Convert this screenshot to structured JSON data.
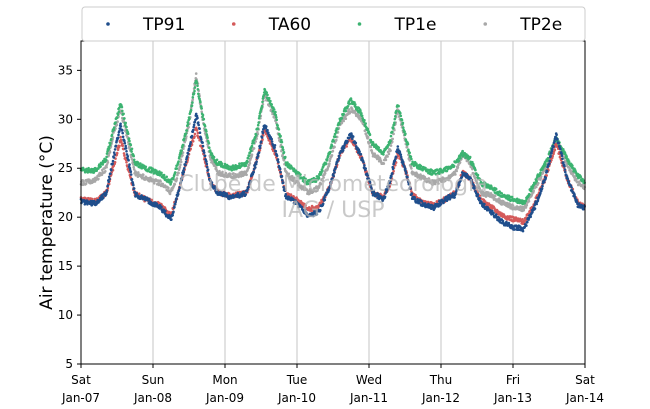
{
  "chart_data": {
    "type": "scatter",
    "ylabel": "Air temperature (°C)",
    "xlabel": "",
    "ylim": [
      5,
      38
    ],
    "yticks": [
      5,
      10,
      15,
      20,
      25,
      30,
      35
    ],
    "x_range_days": [
      0,
      7
    ],
    "xticks": [
      {
        "day": "Sat",
        "date": "Jan-07"
      },
      {
        "day": "Sun",
        "date": "Jan-08"
      },
      {
        "day": "Mon",
        "date": "Jan-09"
      },
      {
        "day": "Tue",
        "date": "Jan-10"
      },
      {
        "day": "Wed",
        "date": "Jan-11"
      },
      {
        "day": "Thu",
        "date": "Jan-12"
      },
      {
        "day": "Fri",
        "date": "Jan-13"
      },
      {
        "day": "Sat",
        "date": "Jan-14"
      }
    ],
    "grid": "vertical",
    "legend_position": "top",
    "watermark": [
      "Clube de Micrometeorologia",
      "IAG / USP"
    ],
    "series": [
      {
        "name": "TP91",
        "color": "#1f4e8c",
        "points": [
          [
            0,
            21.6
          ],
          [
            0.2,
            21.4
          ],
          [
            0.35,
            22.5
          ],
          [
            0.45,
            26
          ],
          [
            0.55,
            29.5
          ],
          [
            0.65,
            26
          ],
          [
            0.75,
            22.3
          ],
          [
            0.9,
            21.8
          ],
          [
            1.1,
            21.0
          ],
          [
            1.25,
            19.8
          ],
          [
            1.35,
            22.5
          ],
          [
            1.5,
            27
          ],
          [
            1.6,
            30.5
          ],
          [
            1.7,
            27
          ],
          [
            1.8,
            23.5
          ],
          [
            1.9,
            22.5
          ],
          [
            2.1,
            22.0
          ],
          [
            2.3,
            22.5
          ],
          [
            2.45,
            26
          ],
          [
            2.55,
            29.5
          ],
          [
            2.7,
            27
          ],
          [
            2.85,
            22
          ],
          [
            3.0,
            21.5
          ],
          [
            3.15,
            20.2
          ],
          [
            3.3,
            20.5
          ],
          [
            3.45,
            23
          ],
          [
            3.6,
            26.5
          ],
          [
            3.75,
            28.5
          ],
          [
            3.9,
            26
          ],
          [
            4.05,
            22.5
          ],
          [
            4.2,
            21.8
          ],
          [
            4.3,
            24
          ],
          [
            4.4,
            27
          ],
          [
            4.5,
            25
          ],
          [
            4.6,
            22
          ],
          [
            4.75,
            21.3
          ],
          [
            4.9,
            21.0
          ],
          [
            5.1,
            22
          ],
          [
            5.2,
            22.3
          ],
          [
            5.3,
            24.5
          ],
          [
            5.4,
            24
          ],
          [
            5.55,
            21.5
          ],
          [
            5.7,
            20.5
          ],
          [
            5.85,
            19.5
          ],
          [
            6.0,
            19.0
          ],
          [
            6.15,
            18.8
          ],
          [
            6.3,
            21
          ],
          [
            6.45,
            24
          ],
          [
            6.6,
            28.5
          ],
          [
            6.75,
            24
          ],
          [
            6.9,
            21.3
          ],
          [
            7.0,
            20.9
          ]
        ]
      },
      {
        "name": "TA60",
        "color": "#d45a5a",
        "points": [
          [
            0,
            21.8
          ],
          [
            0.2,
            21.6
          ],
          [
            0.35,
            22.5
          ],
          [
            0.45,
            25.2
          ],
          [
            0.55,
            28.0
          ],
          [
            0.65,
            25
          ],
          [
            0.75,
            22.4
          ],
          [
            0.9,
            21.8
          ],
          [
            1.1,
            21.2
          ],
          [
            1.25,
            20.2
          ],
          [
            1.35,
            22.5
          ],
          [
            1.5,
            26.5
          ],
          [
            1.6,
            29.0
          ],
          [
            1.7,
            26.5
          ],
          [
            1.8,
            23.5
          ],
          [
            1.9,
            22.5
          ],
          [
            2.1,
            22.2
          ],
          [
            2.3,
            22.5
          ],
          [
            2.45,
            26
          ],
          [
            2.55,
            29.0
          ],
          [
            2.7,
            26.5
          ],
          [
            2.85,
            22.3
          ],
          [
            3.0,
            21.8
          ],
          [
            3.15,
            20.8
          ],
          [
            3.3,
            21
          ],
          [
            3.45,
            23
          ],
          [
            3.6,
            26.5
          ],
          [
            3.75,
            28.0
          ],
          [
            3.9,
            26
          ],
          [
            4.05,
            22.5
          ],
          [
            4.2,
            22
          ],
          [
            4.3,
            23.5
          ],
          [
            4.4,
            26.5
          ],
          [
            4.5,
            25
          ],
          [
            4.6,
            22.3
          ],
          [
            4.75,
            21.5
          ],
          [
            4.9,
            21.2
          ],
          [
            5.1,
            22
          ],
          [
            5.2,
            22.5
          ],
          [
            5.3,
            24.5
          ],
          [
            5.4,
            24
          ],
          [
            5.55,
            21.8
          ],
          [
            5.7,
            21.0
          ],
          [
            5.85,
            20.2
          ],
          [
            6.0,
            19.8
          ],
          [
            6.15,
            19.5
          ],
          [
            6.3,
            21.5
          ],
          [
            6.45,
            24
          ],
          [
            6.6,
            27.5
          ],
          [
            6.75,
            24
          ],
          [
            6.9,
            21.5
          ],
          [
            7.0,
            21.0
          ]
        ]
      },
      {
        "name": "TP1e",
        "color": "#3cb371",
        "points": [
          [
            0,
            24.8
          ],
          [
            0.2,
            24.8
          ],
          [
            0.35,
            26
          ],
          [
            0.45,
            29
          ],
          [
            0.55,
            31.6
          ],
          [
            0.65,
            28.5
          ],
          [
            0.75,
            25.5
          ],
          [
            0.9,
            25.0
          ],
          [
            1.1,
            24.5
          ],
          [
            1.25,
            23.5
          ],
          [
            1.35,
            25.5
          ],
          [
            1.5,
            30
          ],
          [
            1.6,
            34.0
          ],
          [
            1.7,
            30
          ],
          [
            1.8,
            26.5
          ],
          [
            1.9,
            25.5
          ],
          [
            2.1,
            25.0
          ],
          [
            2.3,
            25.5
          ],
          [
            2.45,
            29
          ],
          [
            2.55,
            33.0
          ],
          [
            2.7,
            30.5
          ],
          [
            2.85,
            25.5
          ],
          [
            3.0,
            24.5
          ],
          [
            3.15,
            23.5
          ],
          [
            3.3,
            24
          ],
          [
            3.45,
            26.5
          ],
          [
            3.6,
            30
          ],
          [
            3.75,
            32.0
          ],
          [
            3.9,
            30.5
          ],
          [
            4.05,
            27.5
          ],
          [
            4.2,
            26.5
          ],
          [
            4.3,
            28
          ],
          [
            4.4,
            31.5
          ],
          [
            4.5,
            28.5
          ],
          [
            4.6,
            25.5
          ],
          [
            4.75,
            25.0
          ],
          [
            4.9,
            24.5
          ],
          [
            5.1,
            25
          ],
          [
            5.2,
            25.5
          ],
          [
            5.3,
            26.5
          ],
          [
            5.4,
            26
          ],
          [
            5.55,
            23.5
          ],
          [
            5.7,
            23.0
          ],
          [
            5.85,
            22.2
          ],
          [
            6.0,
            21.8
          ],
          [
            6.15,
            21.5
          ],
          [
            6.3,
            23.5
          ],
          [
            6.45,
            25.5
          ],
          [
            6.6,
            28.0
          ],
          [
            6.75,
            26
          ],
          [
            6.9,
            24.2
          ],
          [
            7.0,
            23.6
          ]
        ]
      },
      {
        "name": "TP2e",
        "color": "#a8a8a8",
        "points": [
          [
            0,
            23.5
          ],
          [
            0.2,
            23.8
          ],
          [
            0.35,
            25
          ],
          [
            0.45,
            28.5
          ],
          [
            0.55,
            31.0
          ],
          [
            0.65,
            28
          ],
          [
            0.75,
            24.5
          ],
          [
            0.9,
            24.0
          ],
          [
            1.1,
            23.5
          ],
          [
            1.25,
            22.5
          ],
          [
            1.35,
            24.5
          ],
          [
            1.5,
            29.5
          ],
          [
            1.6,
            34.6
          ],
          [
            1.7,
            29.5
          ],
          [
            1.8,
            26.0
          ],
          [
            1.9,
            24.5
          ],
          [
            2.1,
            24.2
          ],
          [
            2.3,
            24.5
          ],
          [
            2.45,
            28.5
          ],
          [
            2.55,
            32.5
          ],
          [
            2.7,
            30.0
          ],
          [
            2.85,
            24.5
          ],
          [
            3.0,
            23.5
          ],
          [
            3.15,
            22.5
          ],
          [
            3.3,
            23
          ],
          [
            3.45,
            25.5
          ],
          [
            3.6,
            29.5
          ],
          [
            3.75,
            31.0
          ],
          [
            3.9,
            30.0
          ],
          [
            4.05,
            26.5
          ],
          [
            4.2,
            25.5
          ],
          [
            4.3,
            27
          ],
          [
            4.4,
            31.0
          ],
          [
            4.5,
            28
          ],
          [
            4.6,
            24.5
          ],
          [
            4.75,
            24.0
          ],
          [
            4.9,
            23.5
          ],
          [
            5.1,
            24
          ],
          [
            5.2,
            24.5
          ],
          [
            5.3,
            26.5
          ],
          [
            5.4,
            25.5
          ],
          [
            5.55,
            22.5
          ],
          [
            5.7,
            22.2
          ],
          [
            5.85,
            21.5
          ],
          [
            6.0,
            21.0
          ],
          [
            6.15,
            20.8
          ],
          [
            6.3,
            23
          ],
          [
            6.45,
            25
          ],
          [
            6.6,
            28.0
          ],
          [
            6.75,
            25.5
          ],
          [
            6.9,
            23.5
          ],
          [
            7.0,
            23.0
          ]
        ]
      }
    ]
  }
}
